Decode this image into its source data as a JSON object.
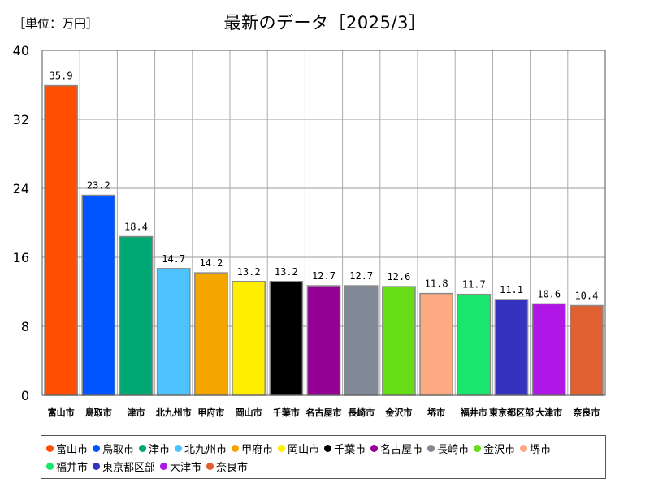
{
  "header": {
    "unit": "［単位：万円］",
    "title": "最新のデータ［2025/3］"
  },
  "chart_data": {
    "type": "bar",
    "title": "最新のデータ［2025/3］",
    "unit": "［単位：万円］",
    "categories": [
      "富山市",
      "鳥取市",
      "津市",
      "北九州市",
      "甲府市",
      "岡山市",
      "千葉市",
      "名古屋市",
      "長崎市",
      "金沢市",
      "堺市",
      "福井市",
      "東京都区部",
      "大津市",
      "奈良市"
    ],
    "values": [
      35.9,
      23.2,
      18.4,
      14.7,
      14.2,
      13.2,
      13.2,
      12.7,
      12.7,
      12.6,
      11.8,
      11.7,
      11.1,
      10.6,
      10.4
    ],
    "value_labels": [
      "35.9",
      "23.2",
      "18.4",
      "14.7",
      "14.2",
      "13.2",
      "13.2",
      "12.7",
      "12.7",
      "12.6",
      "11.8",
      "11.7",
      "11.1",
      "10.6",
      "10.4"
    ],
    "colors": [
      "#ff4e00",
      "#0055ff",
      "#00a874",
      "#4ec3ff",
      "#f5a500",
      "#ffee00",
      "#000000",
      "#930093",
      "#7f8a96",
      "#66dd14",
      "#ffa983",
      "#1ae56c",
      "#3333c0",
      "#b016e6",
      "#e06030"
    ],
    "ylim": [
      0,
      40
    ],
    "yticks": [
      0,
      8,
      16,
      24,
      32,
      40
    ],
    "ytick_labels": [
      "0",
      "8",
      "16",
      "24",
      "32",
      "40"
    ],
    "grid": true,
    "legend_position": "bottom"
  }
}
